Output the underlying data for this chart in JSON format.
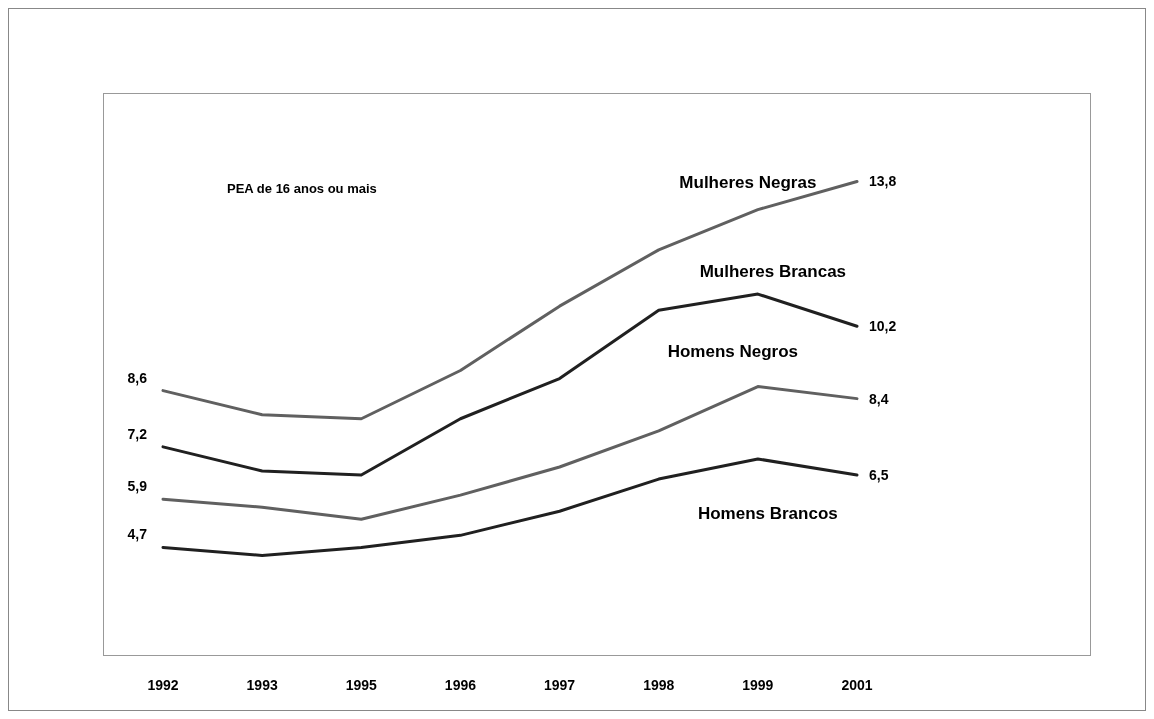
{
  "chart_data": {
    "type": "line",
    "categories": [
      "1992",
      "1993",
      "1995",
      "1996",
      "1997",
      "1998",
      "1999",
      "2001"
    ],
    "ylim": [
      2,
      16
    ],
    "legend": false,
    "grid": false,
    "tick_labels": "x",
    "marker": "none",
    "line_style": "solid",
    "annotations": [
      "PEA de 16 anos ou mais"
    ],
    "series": [
      {
        "name": "Mulheres Negras",
        "color": "#606060",
        "values": [
          8.6,
          8.0,
          7.9,
          9.1,
          10.7,
          12.1,
          13.1,
          13.8
        ],
        "value_labels": [
          "8,6",
          null,
          null,
          null,
          null,
          null,
          null,
          "13,8"
        ]
      },
      {
        "name": "Mulheres Brancas",
        "color": "#202020",
        "values": [
          7.2,
          6.6,
          6.5,
          7.9,
          8.9,
          10.6,
          11.0,
          10.2
        ],
        "value_labels": [
          "7,2",
          null,
          null,
          null,
          null,
          null,
          null,
          "10,2"
        ]
      },
      {
        "name": "Homens Negros",
        "color": "#606060",
        "values": [
          5.9,
          5.7,
          5.4,
          6.0,
          6.7,
          7.6,
          8.7,
          8.4
        ],
        "value_labels": [
          "5,9",
          null,
          null,
          null,
          null,
          null,
          null,
          "8,4"
        ]
      },
      {
        "name": "Homens Brancos",
        "color": "#202020",
        "values": [
          4.7,
          4.5,
          4.7,
          5.0,
          5.6,
          6.4,
          6.9,
          6.5
        ],
        "value_labels": [
          "4,7",
          null,
          null,
          null,
          null,
          null,
          null,
          "6,5"
        ]
      }
    ]
  }
}
